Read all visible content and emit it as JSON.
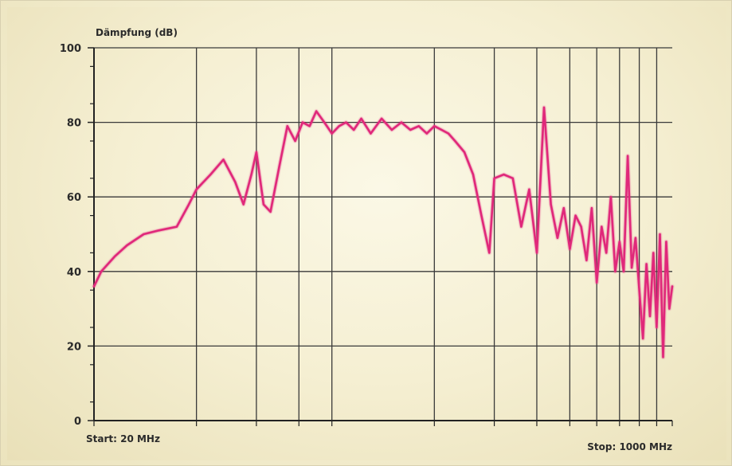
{
  "chart_data": {
    "type": "line",
    "ylabel": "Dämpfung (dB)",
    "start_label": "Start: 20 MHz",
    "stop_label": "Stop: 1000 MHz",
    "xscale": "log",
    "xlim": [
      20,
      1000
    ],
    "ylim": [
      0,
      100
    ],
    "yticks": [
      0,
      20,
      40,
      60,
      80,
      100
    ],
    "x_gridlines_mhz": [
      40,
      60,
      80,
      100,
      200,
      300,
      400,
      500,
      600,
      700,
      800,
      900
    ],
    "grid": true,
    "legend": "none",
    "series": [
      {
        "color": "#e0287a",
        "x": [
          20,
          21,
          23,
          25,
          28,
          31,
          35,
          38,
          40,
          44,
          48,
          52,
          55,
          58,
          60,
          63,
          66,
          70,
          74,
          78,
          82,
          86,
          90,
          95,
          100,
          105,
          110,
          116,
          122,
          130,
          140,
          150,
          160,
          170,
          180,
          190,
          200,
          210,
          220,
          230,
          245,
          260,
          275,
          290,
          300,
          320,
          340,
          360,
          380,
          400,
          420,
          440,
          460,
          480,
          500,
          520,
          540,
          560,
          580,
          600,
          620,
          640,
          660,
          680,
          700,
          720,
          740,
          760,
          780,
          800,
          820,
          840,
          860,
          880,
          900,
          920,
          940,
          960,
          980,
          1000
        ],
        "y": [
          36,
          40,
          44,
          47,
          50,
          51,
          52,
          58,
          62,
          66,
          70,
          64,
          58,
          66,
          72,
          58,
          56,
          68,
          79,
          75,
          80,
          79,
          83,
          80,
          77,
          79,
          80,
          78,
          81,
          77,
          81,
          78,
          80,
          78,
          79,
          77,
          79,
          78,
          77,
          75,
          72,
          66,
          55,
          45,
          65,
          66,
          65,
          52,
          62,
          45,
          84,
          58,
          49,
          57,
          46,
          55,
          52,
          43,
          57,
          37,
          52,
          45,
          60,
          40,
          48,
          40,
          71,
          41,
          49,
          35,
          22,
          42,
          28,
          45,
          25,
          50,
          17,
          48,
          30,
          36
        ]
      }
    ]
  }
}
